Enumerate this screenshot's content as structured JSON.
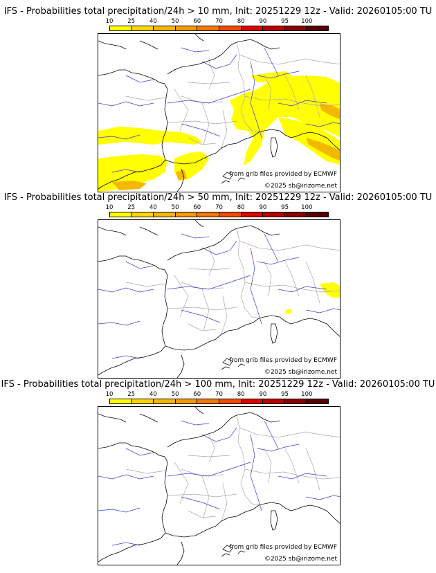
{
  "colors": {
    "swatches": [
      "#ffff00",
      "#ffd700",
      "#f5b800",
      "#f59a00",
      "#f57800",
      "#f54a00",
      "#e00000",
      "#b80000",
      "#8c0000",
      "#5a0000"
    ],
    "coast": "#000000",
    "river": "#3b3bd6",
    "border": "#a8a8a8"
  },
  "colorbar": {
    "ticks": [
      "10",
      "25",
      "40",
      "50",
      "60",
      "70",
      "80",
      "90",
      "95",
      "100"
    ]
  },
  "credits": {
    "source": "from grib files provided by ECMWF",
    "copyright": "©2025 sb@irizome.net"
  },
  "panels": [
    {
      "title": "IFS - Probabilities total precipitation/24h > 10 mm, Init: 20251229 12z - Valid: 20260105:00 TU",
      "level": "heavy"
    },
    {
      "title": "IFS - Probabilities total precipitation/24h > 50 mm, Init: 20251229 12z - Valid: 20260105:00 TU",
      "level": "light"
    },
    {
      "title": "IFS - Probabilities total precipitation/24h > 100 mm, Init: 20251229 12z - Valid: 20260105:00 TU",
      "level": "none"
    }
  ]
}
